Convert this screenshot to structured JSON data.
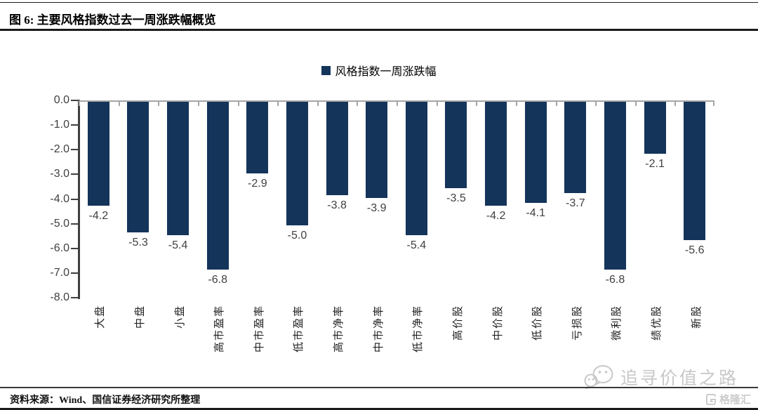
{
  "header": {
    "title": "图 6:  主要风格指数过去一周涨跌幅概览"
  },
  "legend": {
    "label": "风格指数一周涨跌幅",
    "marker_color": "#14345a"
  },
  "chart_data": {
    "type": "bar",
    "title": "风格指数一周涨跌幅",
    "categories": [
      "大盘",
      "中盘",
      "小盘",
      "高市盈率",
      "中市盈率",
      "低市盈率",
      "高市净率",
      "中市净率",
      "低市净率",
      "高价股",
      "中价股",
      "低价股",
      "亏损股",
      "微利股",
      "绩优股",
      "新股"
    ],
    "values": [
      -4.2,
      -5.3,
      -5.4,
      -6.8,
      -2.9,
      -5.0,
      -3.8,
      -3.9,
      -5.4,
      -3.5,
      -4.2,
      -4.1,
      -3.7,
      -6.8,
      -2.1,
      -5.6
    ],
    "xlabel": "",
    "ylabel": "",
    "ylim": [
      -8.0,
      0.0
    ],
    "ytick_labels": [
      "0.0",
      "-1.0",
      "-2.0",
      "-3.0",
      "-4.0",
      "-5.0",
      "-6.0",
      "-7.0",
      "-8.0"
    ],
    "grid": false,
    "legend_entries": [
      "风格指数一周涨跌幅"
    ],
    "legend_position": "top-center",
    "bar_color": "#14345a",
    "baseline_color": "#a6a6a6",
    "axis_color": "#404040",
    "value_label_color": "#404040"
  },
  "footer": {
    "source": "资料来源：Wind、国信证券经济研究所整理",
    "watermark": "追寻价值之路",
    "logo_text": "格隆汇"
  }
}
